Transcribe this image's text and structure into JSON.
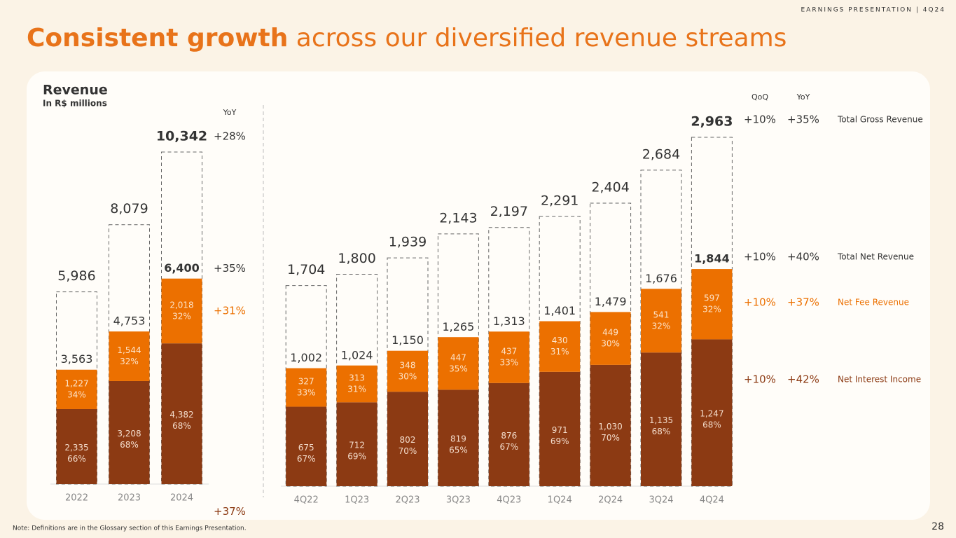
{
  "header": {
    "label": "EARNINGS PRESENTATION | 4Q24",
    "title_bold": "Consistent growth",
    "title_rest": " across our diversified revenue streams",
    "card_title": "Revenue",
    "card_subtitle": "In R$ millions",
    "note": "Note: Definitions are in the Glossary section of this Earnings Presentation.",
    "page": "28"
  },
  "chart_data": [
    {
      "type": "stacked_bar",
      "categories": [
        "2022",
        "2023",
        "2024"
      ],
      "ylim": [
        0,
        10342
      ],
      "yoy_header": "YoY",
      "series": [
        {
          "color": "#8c3a13",
          "values": [
            2335,
            3208,
            4382
          ],
          "value_labels": [
            "2,335",
            "3,208",
            "4,382"
          ],
          "share_labels": [
            "66%",
            "68%",
            "68%"
          ],
          "yoy": "+37%"
        },
        {
          "color": "#ec7000",
          "values": [
            1227,
            1544,
            2018
          ],
          "value_labels": [
            "1,227",
            "1,544",
            "2,018"
          ],
          "share_labels": [
            "34%",
            "32%",
            "32%"
          ],
          "yoy": "+31%"
        }
      ],
      "net_totals": {
        "values": [
          3563,
          4753,
          6400
        ],
        "value_labels": [
          "3,563",
          "4,753",
          "6,400"
        ],
        "yoy": "+35%"
      },
      "gross_totals": {
        "values": [
          5986,
          8079,
          10342
        ],
        "value_labels": [
          "5,986",
          "8,079",
          "10,342"
        ],
        "yoy": "+28%"
      }
    },
    {
      "type": "stacked_bar",
      "categories": [
        "4Q22",
        "1Q23",
        "2Q23",
        "3Q23",
        "4Q23",
        "1Q24",
        "2Q24",
        "3Q24",
        "4Q24"
      ],
      "ylim": [
        0,
        2963
      ],
      "qoq_header": "QoQ",
      "yoy_header": "YoY",
      "series": [
        {
          "name": "Net Interest Income",
          "color": "#8c3a13",
          "values": [
            675,
            712,
            802,
            819,
            876,
            971,
            1030,
            1135,
            1247
          ],
          "value_labels": [
            "675",
            "712",
            "802",
            "819",
            "876",
            "971",
            "1,030",
            "1,135",
            "1,247"
          ],
          "share_labels": [
            "67%",
            "69%",
            "70%",
            "65%",
            "67%",
            "69%",
            "70%",
            "68%",
            "68%"
          ],
          "qoq": "+10%",
          "yoy": "+42%"
        },
        {
          "name": "Net Fee Revenue",
          "color": "#ec7000",
          "values": [
            327,
            313,
            348,
            447,
            437,
            430,
            449,
            541,
            597
          ],
          "value_labels": [
            "327",
            "313",
            "348",
            "447",
            "437",
            "430",
            "449",
            "541",
            "597"
          ],
          "share_labels": [
            "33%",
            "31%",
            "30%",
            "35%",
            "33%",
            "31%",
            "30%",
            "32%",
            "32%"
          ],
          "qoq": "+10%",
          "yoy": "+37%"
        }
      ],
      "net_totals": {
        "name": "Total Net Revenue",
        "values": [
          1002,
          1024,
          1150,
          1265,
          1313,
          1401,
          1479,
          1676,
          1844
        ],
        "value_labels": [
          "1,002",
          "1,024",
          "1,150",
          "1,265",
          "1,313",
          "1,401",
          "1,479",
          "1,676",
          "1,844"
        ],
        "qoq": "+10%",
        "yoy": "+40%"
      },
      "gross_totals": {
        "name": "Total Gross Revenue",
        "values": [
          1704,
          1800,
          1939,
          2143,
          2197,
          2291,
          2404,
          2684,
          2963
        ],
        "value_labels": [
          "1,704",
          "1,800",
          "1,939",
          "2,143",
          "2,197",
          "2,291",
          "2,404",
          "2,684",
          "2,963"
        ],
        "qoq": "+10%",
        "yoy": "+35%"
      }
    }
  ]
}
